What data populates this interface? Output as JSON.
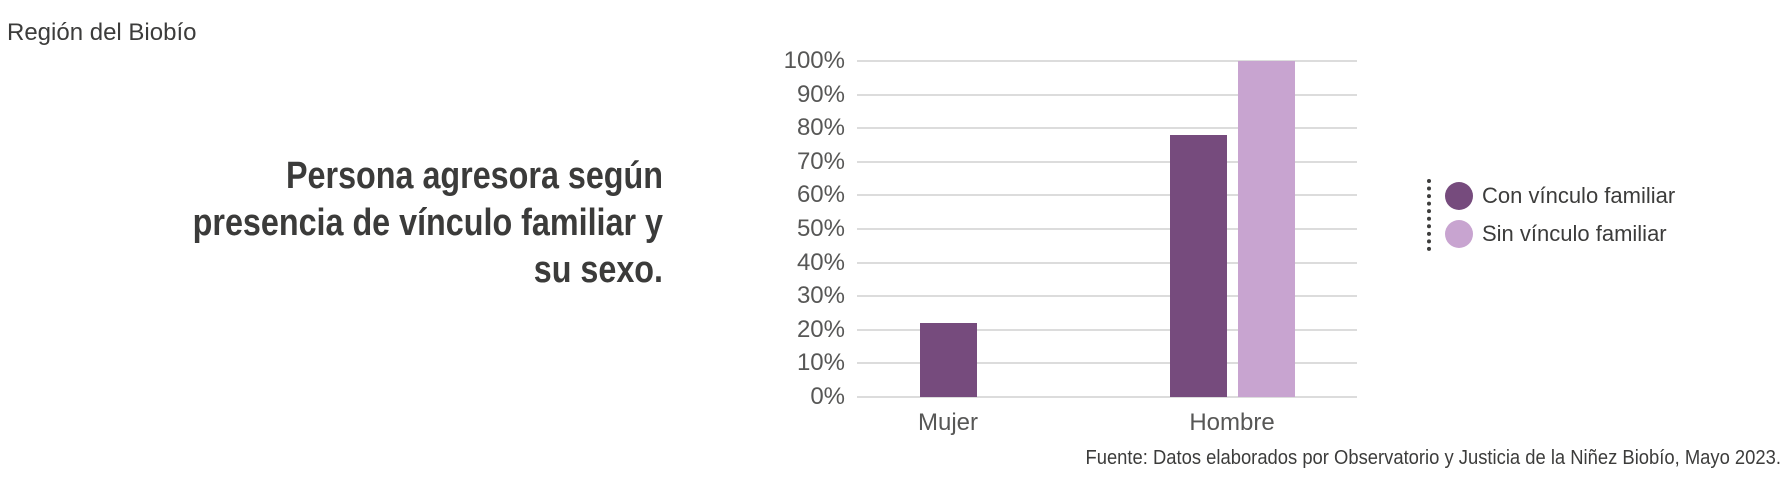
{
  "page": {
    "region_label": "Región del Biobío",
    "title_lines": [
      "Persona agresora según",
      "presencia de vínculo familiar y",
      "su sexo."
    ],
    "source": "Fuente: Datos elaborados por Observatorio y Justicia de la Niñez Biobío, Mayo 2023."
  },
  "colors": {
    "con_vinculo": "#764b7d",
    "sin_vinculo": "#c8a4d0",
    "gridline": "#dcdcdc",
    "axis_text": "#575756",
    "dark_text": "#3c3c3b"
  },
  "chart_data": {
    "type": "bar",
    "title": "Persona agresora según presencia de vínculo familiar y su sexo.",
    "categories": [
      "Mujer",
      "Hombre"
    ],
    "series": [
      {
        "name": "Con vínculo familiar",
        "color": "#764b7d",
        "values": [
          22,
          78
        ]
      },
      {
        "name": "Sin vínculo familiar",
        "color": "#c8a4d0",
        "values": [
          0,
          100
        ]
      }
    ],
    "y_ticks": [
      "0%",
      "10%",
      "20%",
      "30%",
      "40%",
      "50%",
      "60%",
      "70%",
      "80%",
      "90%",
      "100%"
    ],
    "ylim": [
      0,
      100
    ],
    "xlabel": "",
    "ylabel": "",
    "grid": true,
    "legend_position": "right"
  },
  "legend": {
    "items": [
      {
        "label": "Con vínculo familiar",
        "color": "#764b7d"
      },
      {
        "label": "Sin vínculo familiar",
        "color": "#c8a4d0"
      }
    ]
  }
}
